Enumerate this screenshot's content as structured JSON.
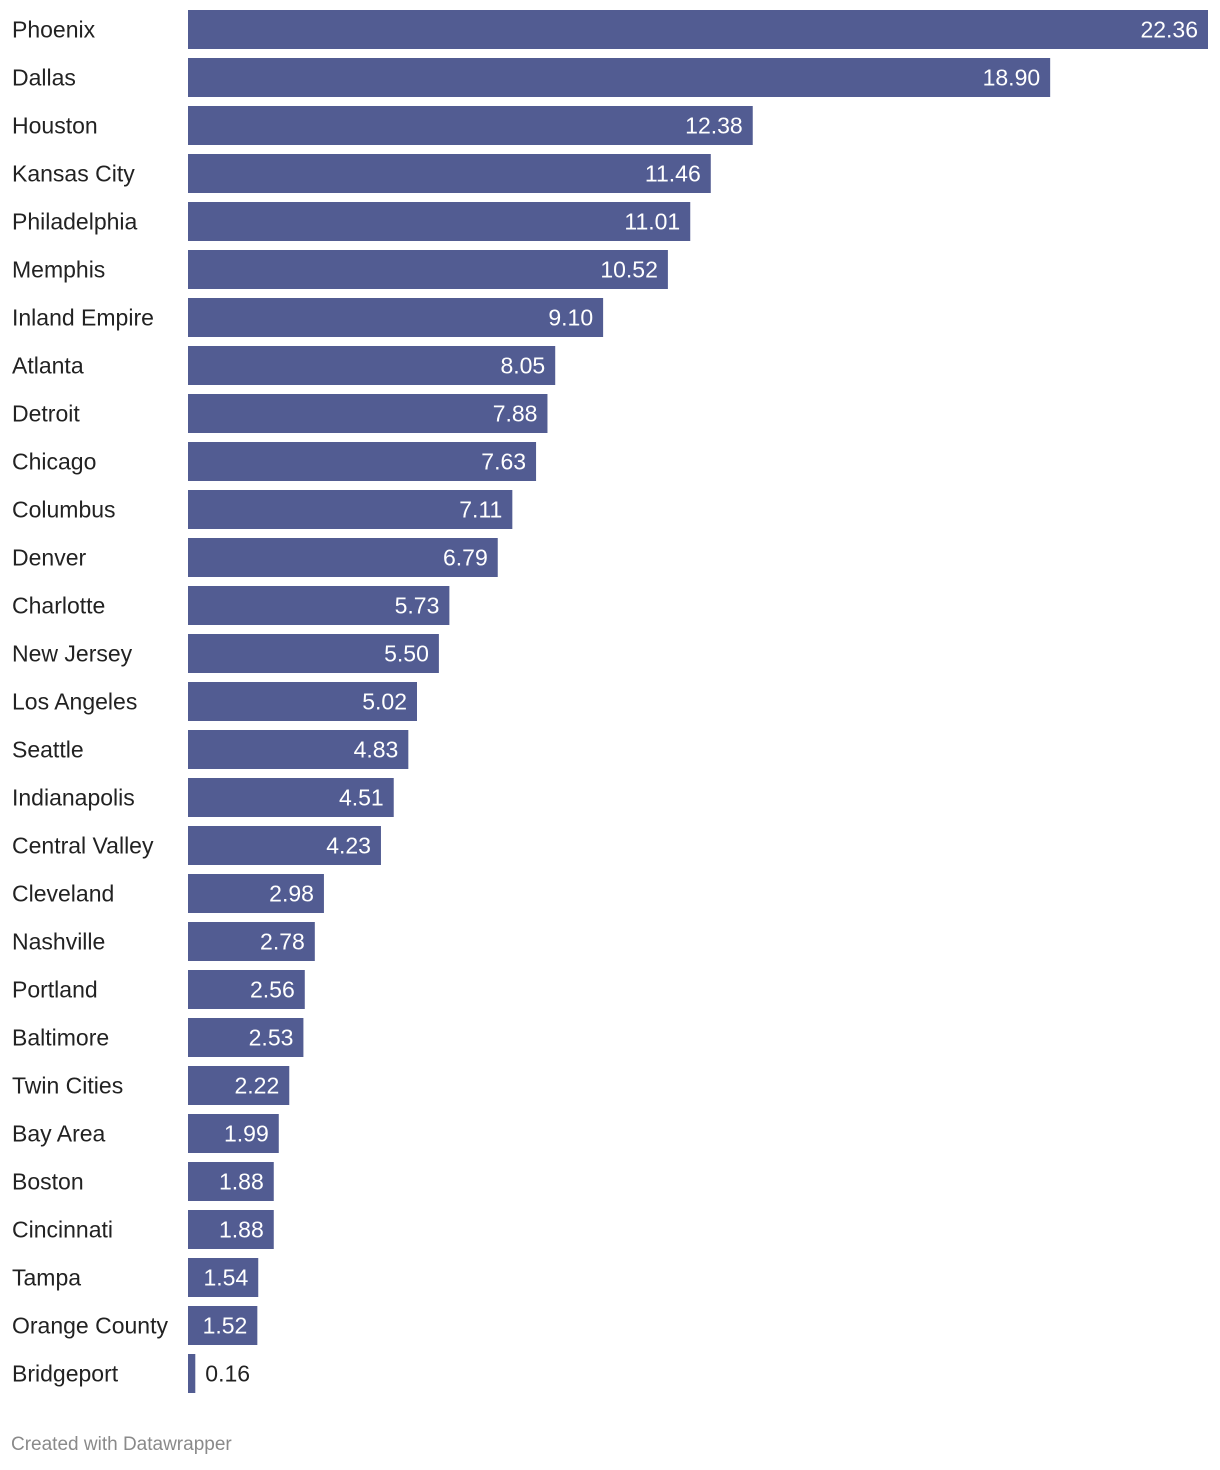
{
  "chart_data": {
    "type": "bar",
    "orientation": "horizontal",
    "categories": [
      "Phoenix",
      "Dallas",
      "Houston",
      "Kansas City",
      "Philadelphia",
      "Memphis",
      "Inland Empire",
      "Atlanta",
      "Detroit",
      "Chicago",
      "Columbus",
      "Denver",
      "Charlotte",
      "New Jersey",
      "Los Angeles",
      "Seattle",
      "Indianapolis",
      "Central Valley",
      "Cleveland",
      "Nashville",
      "Portland",
      "Baltimore",
      "Twin Cities",
      "Bay Area",
      "Boston",
      "Cincinnati",
      "Tampa",
      "Orange County",
      "Bridgeport"
    ],
    "values": [
      22.36,
      18.9,
      12.38,
      11.46,
      11.01,
      10.52,
      9.1,
      8.05,
      7.88,
      7.63,
      7.11,
      6.79,
      5.73,
      5.5,
      5.02,
      4.83,
      4.51,
      4.23,
      2.98,
      2.78,
      2.56,
      2.53,
      2.22,
      1.99,
      1.88,
      1.88,
      1.54,
      1.52,
      0.16
    ],
    "value_labels": [
      "22.36",
      "18.90",
      "12.38",
      "11.46",
      "11.01",
      "10.52",
      "9.10",
      "8.05",
      "7.88",
      "7.63",
      "7.11",
      "6.79",
      "5.73",
      "5.50",
      "5.02",
      "4.83",
      "4.51",
      "4.23",
      "2.98",
      "2.78",
      "2.56",
      "2.53",
      "2.22",
      "1.99",
      "1.88",
      "1.88",
      "1.54",
      "1.52",
      "0.16"
    ],
    "xlim": [
      0,
      22.36
    ],
    "title": "",
    "xlabel": "",
    "ylabel": "",
    "grid": false,
    "legend": "none"
  },
  "colors": {
    "bar": "#525c92",
    "value_label_inside": "#ffffff",
    "value_label_outside": "#222222"
  },
  "footer": {
    "credit": "Created with Datawrapper"
  }
}
